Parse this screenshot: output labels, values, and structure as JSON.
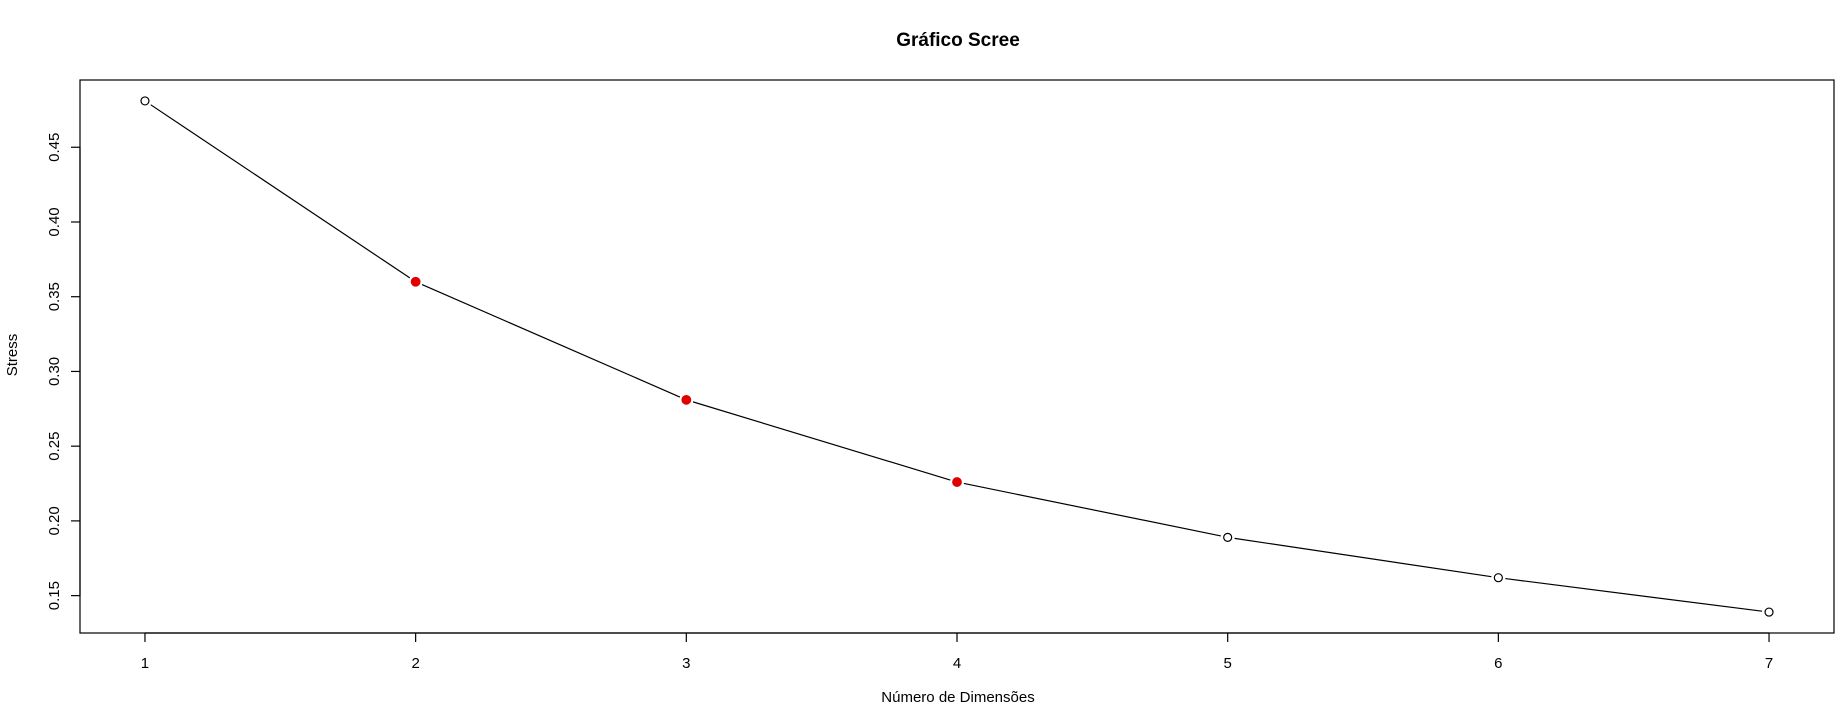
{
  "chart_data": {
    "type": "line",
    "title": "Gráfico Scree",
    "xlabel": "Número de Dimensões",
    "ylabel": "Stress",
    "x": [
      1,
      2,
      3,
      4,
      5,
      6,
      7
    ],
    "series": [
      {
        "values": [
          0.481,
          0.36,
          0.281,
          0.226,
          0.189,
          0.162,
          0.139
        ],
        "highlighted": [
          false,
          true,
          true,
          true,
          false,
          false,
          false
        ]
      }
    ],
    "xlim": [
      0.76,
      7.24
    ],
    "ylim": [
      0.125,
      0.495
    ],
    "xticks": [
      1,
      2,
      3,
      4,
      5,
      6,
      7
    ],
    "xtick_labels": [
      "1",
      "2",
      "3",
      "4",
      "5",
      "6",
      "7"
    ],
    "yticks": [
      0.15,
      0.2,
      0.25,
      0.3,
      0.35,
      0.4,
      0.45
    ],
    "ytick_labels": [
      "0.15",
      "0.20",
      "0.25",
      "0.30",
      "0.35",
      "0.40",
      "0.45"
    ],
    "grid": false,
    "legend": "none",
    "colors": {
      "line": "#000000",
      "open_marker_fill": "#ffffff",
      "highlight_marker": "#e00000",
      "frame": "#000000"
    }
  }
}
